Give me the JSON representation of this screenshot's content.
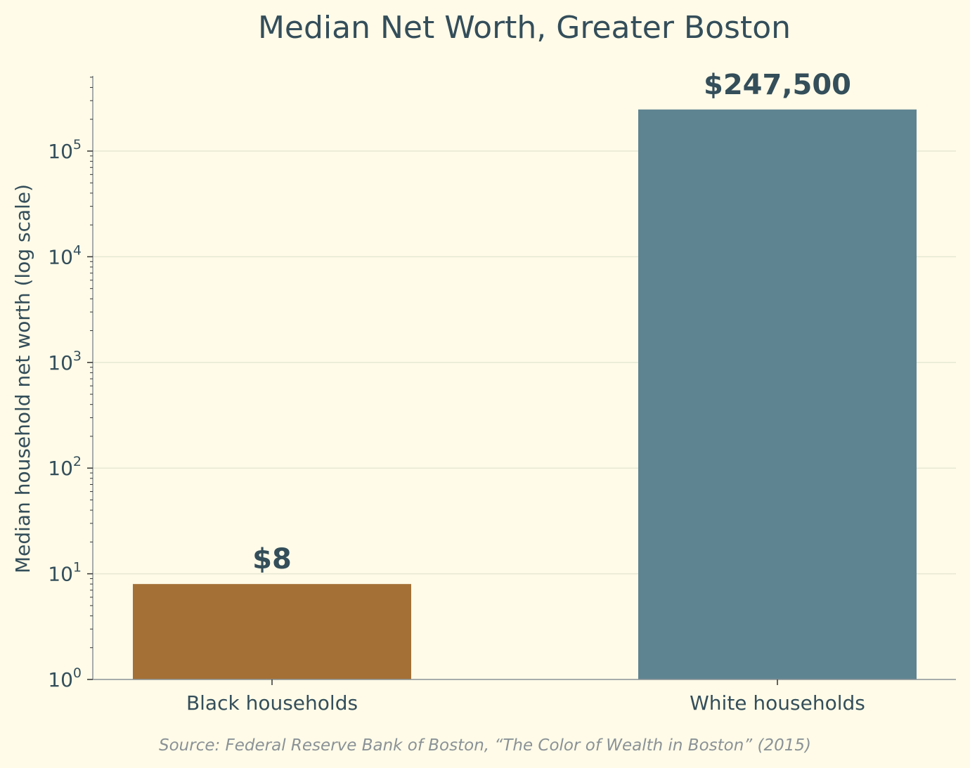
{
  "chart_data": {
    "type": "bar",
    "title": "Median Net Worth, Greater Boston",
    "ylabel": "Median household net worth (log scale)",
    "xlabel": "",
    "yscale": "log",
    "ylim": [
      1,
      500000
    ],
    "y_ticks": [
      {
        "value": 1,
        "base": "10",
        "exp": "0"
      },
      {
        "value": 10,
        "base": "10",
        "exp": "1"
      },
      {
        "value": 100,
        "base": "10",
        "exp": "2"
      },
      {
        "value": 1000,
        "base": "10",
        "exp": "3"
      },
      {
        "value": 10000,
        "base": "10",
        "exp": "4"
      },
      {
        "value": 100000,
        "base": "10",
        "exp": "5"
      }
    ],
    "grid": true,
    "categories": [
      "Black households",
      "White households"
    ],
    "values": [
      8,
      247500
    ],
    "value_labels": [
      "$8",
      "$247,500"
    ],
    "colors": [
      "#a47036",
      "#5e8491"
    ],
    "source": "Source: Federal Reserve Bank of Boston, “The Color of Wealth in Boston” (2015)"
  },
  "style": {
    "background": "#fffbe8",
    "text_color": "#344e5a",
    "axis_color": "#8a9296",
    "grid_color": "#e6e8d4"
  }
}
